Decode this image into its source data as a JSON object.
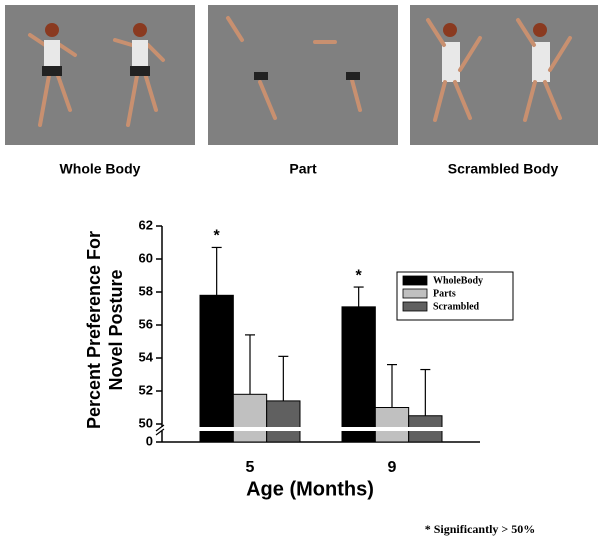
{
  "panels": [
    "Whole Body",
    "Part",
    "Scrambled Body"
  ],
  "chart_data": {
    "type": "bar",
    "ylabel": [
      "Percent Preference For",
      "Novel Posture"
    ],
    "xlabel": "Age (Months)",
    "categories": [
      "5",
      "9"
    ],
    "series": [
      {
        "name": "WholeBody",
        "color": "#000000",
        "values": [
          57.8,
          57.1
        ],
        "errors": [
          2.9,
          1.2
        ]
      },
      {
        "name": "Parts",
        "color": "#c0c0c0",
        "values": [
          51.8,
          51.0
        ],
        "errors": [
          3.6,
          2.6
        ]
      },
      {
        "name": "Scrambled",
        "color": "#606060",
        "values": [
          51.4,
          50.5
        ],
        "errors": [
          2.7,
          2.8
        ]
      }
    ],
    "annotations": [
      "*",
      "*"
    ],
    "ylim": [
      0,
      62
    ],
    "y_break": [
      0,
      50
    ],
    "yticks": [
      0,
      50,
      52,
      54,
      56,
      58,
      60,
      62
    ],
    "legend": "upper right",
    "footnote": "* Significantly > 50%"
  }
}
